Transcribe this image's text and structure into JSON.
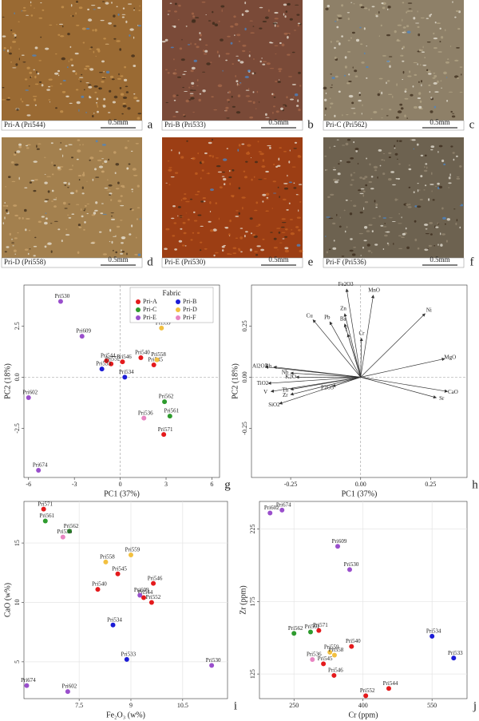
{
  "micrographs": [
    {
      "label": "Pri-A (Pri544)",
      "scale": "0.5mm",
      "letter": "a"
    },
    {
      "label": "Pri-B (Pri533)",
      "scale": "0.5mm",
      "letter": "b"
    },
    {
      "label": "Pri-C (Pri562)",
      "scale": "0.5mm",
      "letter": "c"
    },
    {
      "label": "Pri-D (Pri558)",
      "scale": "0.5mm",
      "letter": "d"
    },
    {
      "label": "Pri-E (Pri530)",
      "scale": "0.5mm",
      "letter": "e"
    },
    {
      "label": "Pri-F (Pri536)",
      "scale": "0.5mm",
      "letter": "f"
    }
  ],
  "chart_data": [
    {
      "type": "scatter",
      "panel": "g",
      "x_label": "PC1 (37%)",
      "y_label": "PC2 (18%)",
      "legend_title": "Fabric",
      "legend": "top-right",
      "zero_lines": true,
      "grid": false,
      "xlim": [
        -6.3,
        6.5
      ],
      "xticks": [
        -6,
        -3,
        0,
        3,
        6
      ],
      "ylim": [
        -4.9,
        4.5
      ],
      "yticks": [
        {
          "value": -2.5,
          "label": "-2.5"
        },
        {
          "value": 0,
          "label": "0.0"
        },
        {
          "value": 2.5,
          "label": "2.5"
        }
      ],
      "series": [
        {
          "name": "Pri-A",
          "color": "#e41a1c",
          "labels": [
            "Pri544",
            "Pri552",
            "Pri546",
            "Pri540",
            "Pri545",
            "Pri571"
          ],
          "x": [
            -0.9,
            -0.6,
            0.15,
            1.35,
            2.2,
            2.85
          ],
          "y": [
            0.8,
            0.65,
            0.75,
            0.95,
            0.6,
            -2.8
          ]
        },
        {
          "name": "Pri-B",
          "color": "#1c1cd6",
          "labels": [
            "Pri533",
            "Pri534"
          ],
          "x": [
            -1.2,
            0.3
          ],
          "y": [
            0.4,
            0
          ]
        },
        {
          "name": "Pri-C",
          "color": "#2e9b2e",
          "labels": [
            "Pri562",
            "Pri561"
          ],
          "x": [
            2.9,
            3.25
          ],
          "y": [
            -1.2,
            -1.9
          ]
        },
        {
          "name": "Pri-D",
          "color": "#f2c040",
          "labels": [
            "Pri559",
            "Pri558"
          ],
          "x": [
            2.7,
            2.4
          ],
          "y": [
            2.4,
            0.85
          ]
        },
        {
          "name": "Pri-E",
          "color": "#9a4fcc",
          "labels": [
            "Pri530",
            "Pri609",
            "Pri602",
            "Pri674"
          ],
          "x": [
            -3.9,
            -2.5,
            -6.0,
            -5.35
          ],
          "y": [
            3.7,
            2.0,
            -1.0,
            -4.55
          ]
        },
        {
          "name": "Pri-F",
          "color": "#e885c2",
          "labels": [
            "Pri536"
          ],
          "x": [
            1.55
          ],
          "y": [
            -2.0
          ]
        }
      ]
    },
    {
      "type": "loadings",
      "panel": "h",
      "x_label": "PC1 (37%)",
      "y_label": "PC2 (18%)",
      "zero_lines": true,
      "grid": false,
      "xlim": [
        -0.39,
        0.38
      ],
      "xticks": [
        -0.25,
        {
          "value": 0,
          "label": "0.00"
        },
        0.25
      ],
      "ylim": [
        -0.49,
        0.45
      ],
      "yticks": [
        -0.25,
        {
          "value": 0,
          "label": "0.00"
        },
        0.25
      ],
      "labels": [
        "Fe2O3",
        "MnO",
        "Ni",
        "Cu",
        "Pb",
        "Zn",
        "Ba",
        "Y",
        "Cr",
        "MgO",
        "CaO",
        "Sr",
        "Al2O3",
        "Rb",
        "Nb",
        "K2O",
        "TiO2",
        "V",
        "Zr",
        "Th",
        "SiO2",
        "P2O5"
      ],
      "x": [
        -0.05,
        0.045,
        0.23,
        -0.17,
        -0.11,
        -0.057,
        -0.057,
        -0.046,
        0.003,
        0.3,
        0.31,
        0.27,
        -0.34,
        -0.31,
        -0.25,
        -0.23,
        -0.33,
        -0.32,
        -0.25,
        -0.25,
        -0.29,
        -0.1
      ],
      "y": [
        0.43,
        0.4,
        0.31,
        0.28,
        0.27,
        0.31,
        0.26,
        0.21,
        0.19,
        0.09,
        -0.07,
        -0.1,
        0.05,
        0.05,
        0.02,
        0.0,
        -0.03,
        -0.07,
        -0.085,
        -0.06,
        -0.13,
        -0.045
      ]
    },
    {
      "type": "scatter",
      "panel": "i",
      "x_label": "Fe₂O₃ (w%)",
      "y_label": "CaO (w%)",
      "zero_lines": false,
      "grid": true,
      "xlim": [
        5.9,
        11.8
      ],
      "xticks": [
        7.5,
        9,
        10.5
      ],
      "ylim": [
        1.9,
        18.5
      ],
      "yticks": [
        5,
        10,
        15
      ],
      "series": [
        {
          "color": "#e41a1c",
          "labels": [
            "Pri571",
            "Pri545",
            "Pri540",
            "Pri546",
            "Pri544",
            "Pri552"
          ],
          "x": [
            6.47,
            8.62,
            8.04,
            9.65,
            9.37,
            9.6
          ],
          "y": [
            17.85,
            12.4,
            11.1,
            11.6,
            10.4,
            10.0
          ]
        },
        {
          "color": "#1c1cd6",
          "labels": [
            "Pri534",
            "Pri533"
          ],
          "x": [
            8.48,
            8.88
          ],
          "y": [
            8.1,
            5.2
          ]
        },
        {
          "color": "#2e9b2e",
          "labels": [
            "Pri561",
            "Pri562"
          ],
          "x": [
            6.52,
            7.22
          ],
          "y": [
            16.85,
            16.0
          ]
        },
        {
          "color": "#f2c040",
          "labels": [
            "Pri559",
            "Pri558"
          ],
          "x": [
            9.0,
            8.27
          ],
          "y": [
            14.0,
            13.4
          ]
        },
        {
          "color": "#9a4fcc",
          "labels": [
            "Pri609",
            "Pri530",
            "Pri674",
            "Pri602"
          ],
          "x": [
            9.26,
            11.34,
            5.98,
            7.17
          ],
          "y": [
            10.6,
            4.7,
            3.0,
            2.5
          ]
        },
        {
          "color": "#e885c2",
          "labels": [
            "Pri536"
          ],
          "x": [
            7.03
          ],
          "y": [
            15.5
          ]
        }
      ]
    },
    {
      "type": "scatter",
      "panel": "j",
      "x_label": "Cr (ppm)",
      "y_label": "Zr (ppm)",
      "zero_lines": false,
      "grid": true,
      "xlim": [
        175,
        626
      ],
      "xticks": [
        250,
        400,
        550
      ],
      "ylim": [
        108,
        244
      ],
      "yticks": [
        125,
        175,
        225
      ],
      "series": [
        {
          "color": "#e41a1c",
          "labels": [
            "Pri571",
            "Pri540",
            "Pri545",
            "Pri546",
            "Pri552",
            "Pri544"
          ],
          "x": [
            304,
            375,
            314,
            337,
            406,
            456
          ],
          "y": [
            155,
            144,
            132,
            124,
            110,
            115
          ]
        },
        {
          "color": "#1c1cd6",
          "labels": [
            "Pri534",
            "Pri533"
          ],
          "x": [
            550,
            597
          ],
          "y": [
            151,
            136
          ]
        },
        {
          "color": "#2e9b2e",
          "labels": [
            "Pri562",
            "Pri561"
          ],
          "x": [
            250,
            286
          ],
          "y": [
            153,
            154
          ]
        },
        {
          "color": "#f2c040",
          "labels": [
            "Pri559",
            "Pri558"
          ],
          "x": [
            328,
            338
          ],
          "y": [
            140,
            138
          ]
        },
        {
          "color": "#9a4fcc",
          "labels": [
            "Pri602",
            "Pri674",
            "Pri609",
            "Pri530"
          ],
          "x": [
            198,
            224,
            345,
            371
          ],
          "y": [
            236,
            238,
            213,
            197
          ]
        },
        {
          "color": "#e885c2",
          "labels": [
            "Pri536"
          ],
          "x": [
            290
          ],
          "y": [
            135
          ]
        }
      ]
    }
  ]
}
